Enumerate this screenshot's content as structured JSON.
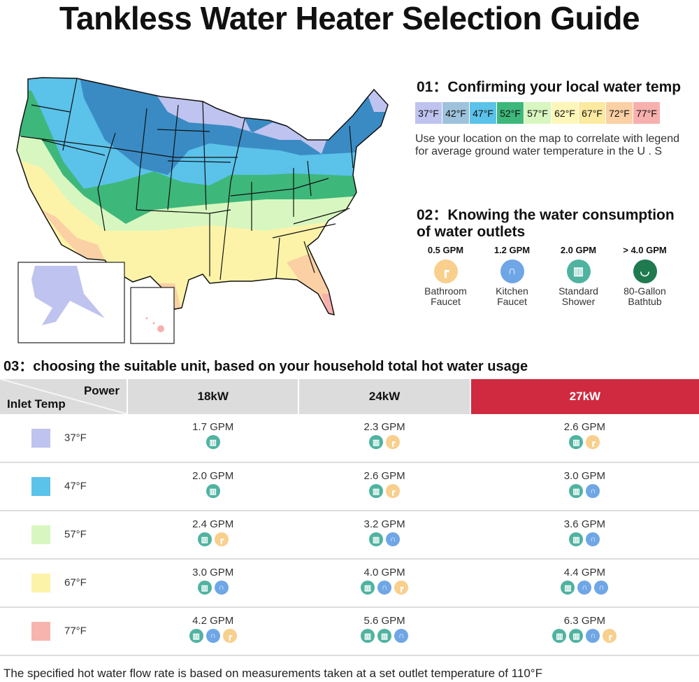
{
  "title": "Tankless Water Heater Selection Guide",
  "step1": {
    "heading": "01：Confirming your local water temp",
    "legend": [
      {
        "label": "37°F",
        "color": "#bfc3ef"
      },
      {
        "label": "42°F",
        "color": "#9ec2dc"
      },
      {
        "label": "47°F",
        "color": "#5bc2ea"
      },
      {
        "label": "52°F",
        "color": "#3eb77a"
      },
      {
        "label": "57°F",
        "color": "#d8f7c0"
      },
      {
        "label": "62°F",
        "color": "#fdf6b8"
      },
      {
        "label": "67°F",
        "color": "#fbeaa0"
      },
      {
        "label": "72°F",
        "color": "#fad0a4"
      },
      {
        "label": "77°F",
        "color": "#f7b0ae"
      }
    ],
    "description": "Use your location on the map to correlate with legend for average ground water temperature in the U . S"
  },
  "step2": {
    "heading_line1": "02：Knowing the water consumption",
    "heading_line2": "of water outlets",
    "outlets": [
      {
        "gpm": "0.5 GPM",
        "line1": "Bathroom",
        "line2": "Faucet",
        "icon": "bathroom-faucet-icon",
        "color": "#f8cf8c"
      },
      {
        "gpm": "1.2 GPM",
        "line1": "Kitchen",
        "line2": "Faucet",
        "icon": "kitchen-faucet-icon",
        "color": "#6fa6e6"
      },
      {
        "gpm": "2.0 GPM",
        "line1": "Standard",
        "line2": "Shower",
        "icon": "shower-icon",
        "color": "#4fb3a0"
      },
      {
        "gpm": "> 4.0 GPM",
        "line1": "80-Gallon",
        "line2": "Bathtub",
        "icon": "bathtub-icon",
        "color": "#1f7a50"
      }
    ]
  },
  "step3": {
    "heading": "03：choosing the suitable unit, based on your household total hot water usage",
    "corner_top": "Power",
    "corner_bottom": "Inlet Temp",
    "columns": [
      "18kW",
      "24kW",
      "27kW"
    ],
    "highlight_color": "#cf2a40",
    "rows": [
      {
        "temp": "37°F",
        "color": "#bfc3ef",
        "cells": [
          {
            "gpm": "1.7 GPM",
            "icons": [
              "S"
            ]
          },
          {
            "gpm": "2.3 GPM",
            "icons": [
              "S",
              "B"
            ]
          },
          {
            "gpm": "2.6 GPM",
            "icons": [
              "S",
              "B"
            ]
          }
        ]
      },
      {
        "temp": "47°F",
        "color": "#5bc2ea",
        "cells": [
          {
            "gpm": "2.0 GPM",
            "icons": [
              "S"
            ]
          },
          {
            "gpm": "2.6 GPM",
            "icons": [
              "S",
              "B"
            ]
          },
          {
            "gpm": "3.0 GPM",
            "icons": [
              "S",
              "K"
            ]
          }
        ]
      },
      {
        "temp": "57°F",
        "color": "#d8f7c0",
        "cells": [
          {
            "gpm": "2.4 GPM",
            "icons": [
              "S",
              "B"
            ]
          },
          {
            "gpm": "3.2 GPM",
            "icons": [
              "S",
              "K"
            ]
          },
          {
            "gpm": "3.6 GPM",
            "icons": [
              "S",
              "K"
            ]
          }
        ]
      },
      {
        "temp": "67°F",
        "color": "#fdf3a8",
        "cells": [
          {
            "gpm": "3.0 GPM",
            "icons": [
              "S",
              "K"
            ]
          },
          {
            "gpm": "4.0 GPM",
            "icons": [
              "S",
              "K",
              "B"
            ]
          },
          {
            "gpm": "4.4 GPM",
            "icons": [
              "S",
              "K",
              "K"
            ]
          }
        ]
      },
      {
        "temp": "77°F",
        "color": "#f7b4ae",
        "cells": [
          {
            "gpm": "4.2 GPM",
            "icons": [
              "S",
              "K",
              "B"
            ]
          },
          {
            "gpm": "5.6 GPM",
            "icons": [
              "S",
              "S",
              "K"
            ]
          },
          {
            "gpm": "6.3 GPM",
            "icons": [
              "S",
              "S",
              "K",
              "B"
            ]
          }
        ]
      }
    ]
  },
  "footnote": "The specified hot water flow rate is based on measurements taken at a set outlet temperature of 110°F"
}
